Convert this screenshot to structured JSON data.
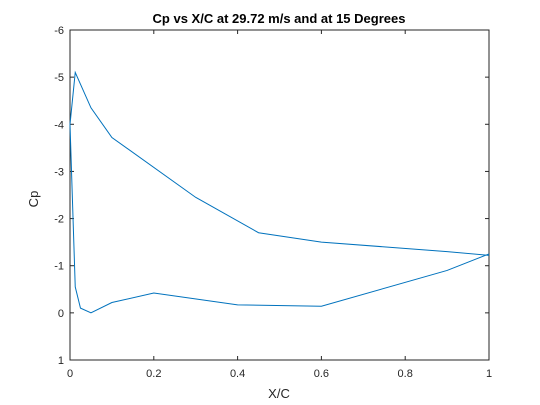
{
  "chart_data": {
    "type": "line",
    "title": "Cp vs X/C at 29.72 m/s and at 15 Degrees",
    "xlabel": "X/C",
    "ylabel": "Cp",
    "xlim": [
      0,
      1
    ],
    "ylim": [
      -6,
      1
    ],
    "y_reversed": true,
    "grid": false,
    "x_ticks": [
      0,
      0.2,
      0.4,
      0.6,
      0.8,
      1
    ],
    "x_tick_labels": [
      "0",
      "0.2",
      "0.4",
      "0.6",
      "0.8",
      "1"
    ],
    "y_ticks": [
      -6,
      -5,
      -4,
      -3,
      -2,
      -1,
      0,
      1
    ],
    "y_tick_labels": [
      "-6",
      "-5",
      "-4",
      "-3",
      "-2",
      "-1",
      "0",
      "1"
    ],
    "series": [
      {
        "color": "#0072BD",
        "x": [
          1,
          0.9,
          0.6,
          0.45,
          0.3,
          0.1,
          0.05,
          0.025,
          0.0125,
          0,
          0.0125,
          0.025,
          0.05,
          0.1,
          0.2,
          0.4,
          0.6,
          0.9,
          1
        ],
        "y": [
          -1.22,
          -1.3,
          -1.5,
          -1.7,
          -2.45,
          -3.72,
          -4.35,
          -4.85,
          -5.1,
          -4.0,
          -0.55,
          -0.1,
          0.0,
          -0.22,
          -0.42,
          -0.17,
          -0.14,
          -0.9,
          -1.25
        ]
      }
    ]
  }
}
